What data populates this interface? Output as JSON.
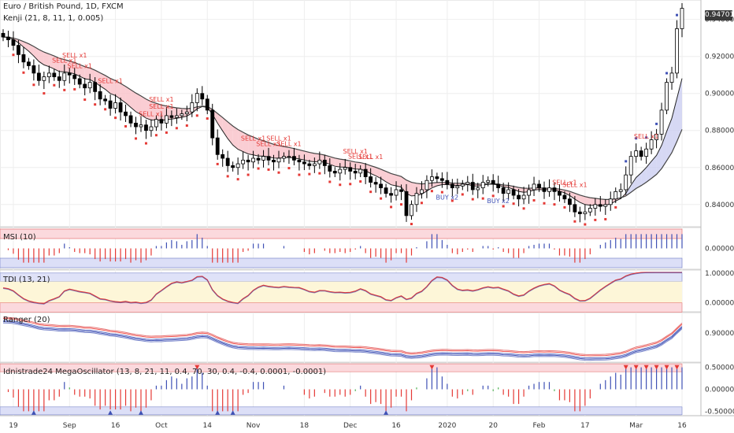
{
  "header": {
    "title": "Euro / British Pound, 1D, FXCM",
    "indicator": "Kenji (21, 8, 11, 1, 0.005)"
  },
  "colors": {
    "up_candle": "#ffffff",
    "down_candle": "#000000",
    "sell_signal": "#e53935",
    "buy_signal": "#3f51b5",
    "band_red": "#f8bcc4",
    "band_blue": "#c8cbf0",
    "grid": "#eeeeee"
  },
  "chart_data": [
    {
      "type": "line",
      "pane": "price",
      "title": "Euro / British Pound, 1D, FXCM",
      "subtitle": "Kenji (21, 8, 11, 1, 0.005)",
      "ylim": [
        0.828,
        0.9505
      ],
      "y_ticks": [
        "0.84000",
        "0.86000",
        "0.88000",
        "0.90000",
        "0.92000",
        "0.94000"
      ],
      "last_price": "0.94701",
      "x_tick_labels": [
        "19",
        "Sep",
        "16",
        "Oct",
        "14",
        "Nov",
        "18",
        "Dec",
        "16",
        "2020",
        "20",
        "Feb",
        "17",
        "Mar",
        "16"
      ],
      "close": [
        0.9305,
        0.929,
        0.926,
        0.921,
        0.917,
        0.915,
        0.911,
        0.907,
        0.909,
        0.911,
        0.909,
        0.907,
        0.911,
        0.91,
        0.908,
        0.905,
        0.903,
        0.906,
        0.901,
        0.897,
        0.896,
        0.892,
        0.895,
        0.89,
        0.888,
        0.884,
        0.882,
        0.883,
        0.88,
        0.882,
        0.886,
        0.884,
        0.888,
        0.887,
        0.888,
        0.889,
        0.89,
        0.895,
        0.9,
        0.897,
        0.891,
        0.876,
        0.867,
        0.865,
        0.861,
        0.86,
        0.862,
        0.864,
        0.863,
        0.865,
        0.864,
        0.866,
        0.864,
        0.863,
        0.865,
        0.866,
        0.866,
        0.864,
        0.863,
        0.862,
        0.861,
        0.862,
        0.864,
        0.861,
        0.858,
        0.857,
        0.859,
        0.86,
        0.858,
        0.857,
        0.859,
        0.855,
        0.852,
        0.851,
        0.849,
        0.846,
        0.845,
        0.848,
        0.847,
        0.834,
        0.84,
        0.846,
        0.848,
        0.853,
        0.855,
        0.854,
        0.853,
        0.851,
        0.849,
        0.85,
        0.851,
        0.852,
        0.848,
        0.849,
        0.852,
        0.853,
        0.851,
        0.849,
        0.846,
        0.848,
        0.845,
        0.843,
        0.845,
        0.848,
        0.851,
        0.849,
        0.847,
        0.849,
        0.847,
        0.845,
        0.843,
        0.84,
        0.836,
        0.835,
        0.836,
        0.838,
        0.84,
        0.839,
        0.84,
        0.843,
        0.847,
        0.848,
        0.856,
        0.866,
        0.869,
        0.866,
        0.87,
        0.875,
        0.878,
        0.891,
        0.906,
        0.911,
        0.935,
        0.946
      ],
      "sell_labels": [
        "SELL x1",
        "SELL x1",
        "SELL x1",
        "SELL x1",
        "SELL x1",
        "SELL x1",
        "SELL x1",
        "SELL x1",
        "SELL x1",
        "SELL x1",
        "SELL x1",
        "SELL x1",
        "SELL x1",
        "SELL x1",
        "SELL x1",
        "SELL x1",
        "SELL x1"
      ],
      "buy_labels": [
        "BUY x2",
        "BUY x2"
      ]
    },
    {
      "type": "bar",
      "pane": "msi",
      "title": "MSI (10)",
      "ylim": [
        -0.6,
        0.6
      ],
      "y_ticks": [
        "0.00000"
      ]
    },
    {
      "type": "line",
      "pane": "tdi",
      "title": "TDI (13, 21)",
      "ylim": [
        -0.3,
        1.1
      ],
      "y_ticks": [
        "1.00000",
        "0.00000"
      ]
    },
    {
      "type": "line",
      "pane": "ranger",
      "title": "Ranger (20)",
      "y_ticks": [
        "0.90000"
      ]
    },
    {
      "type": "bar",
      "pane": "mega",
      "title": "Idnistrade24 MegaOscillator (13, 8, 21, 11, 0.4, 70, 30, 0.4, -0.4, 0.0001, -0.0001)",
      "ylim": [
        -0.6,
        0.6
      ],
      "y_ticks": [
        "0.50000",
        "0.00000",
        "-0.50000"
      ]
    }
  ]
}
